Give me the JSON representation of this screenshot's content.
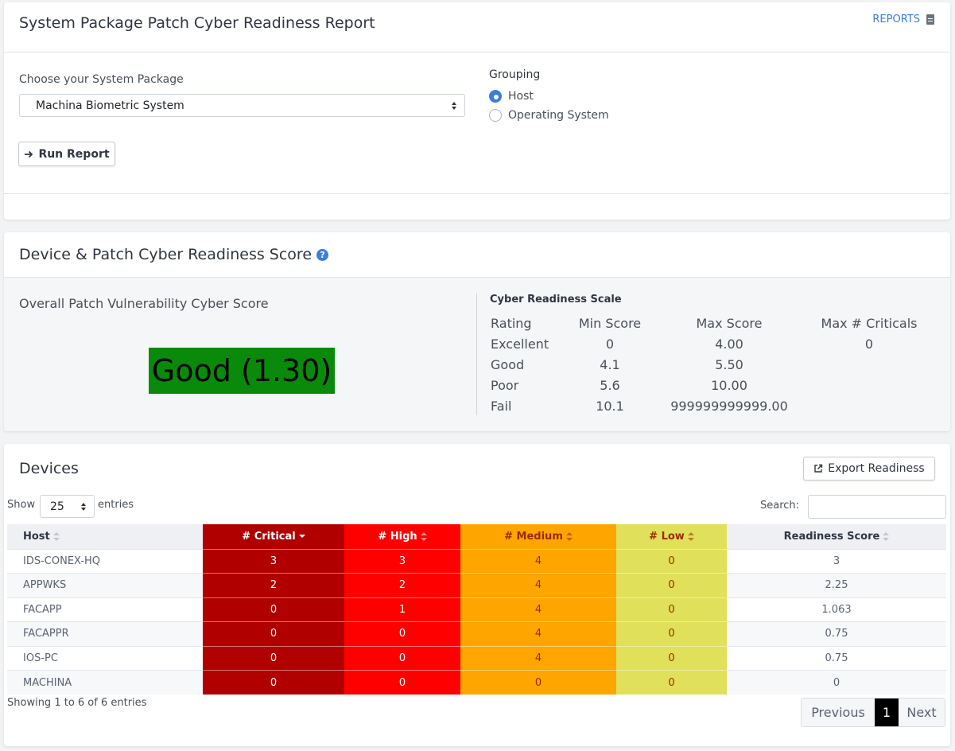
{
  "report": {
    "title": "System Package Patch Cyber Readiness Report",
    "reports_link": "REPORTS",
    "package_label": "Choose your System Package",
    "package_value": "Machina Biometric System",
    "grouping_label": "Grouping",
    "grouping_options": [
      {
        "label": "Host",
        "selected": true
      },
      {
        "label": "Operating System",
        "selected": false
      }
    ],
    "run_button": "Run Report"
  },
  "score": {
    "title": "Device & Patch Cyber Readiness Score",
    "overall_label": "Overall Patch Vulnerability Cyber Score",
    "overall_value": "Good (1.30)",
    "overall_color": "#0a8a0a",
    "scale_title": "Cyber Readiness Scale",
    "scale_headers": [
      "Rating",
      "Min Score",
      "Max Score",
      "Max # Criticals"
    ],
    "scale_rows": [
      [
        "Excellent",
        "0",
        "4.00",
        "0"
      ],
      [
        "Good",
        "4.1",
        "5.50",
        ""
      ],
      [
        "Poor",
        "5.6",
        "10.00",
        ""
      ],
      [
        "Fail",
        "10.1",
        "999999999999.00",
        ""
      ]
    ]
  },
  "devices": {
    "title": "Devices",
    "export_button": "Export Readiness",
    "show_label": "Show",
    "page_size": "25",
    "entries_label": "entries",
    "search_label": "Search:",
    "columns": [
      "Host",
      "# Critical",
      "# High",
      "# Medium",
      "# Low",
      "Readiness Score"
    ],
    "column_colors": {
      "critical": "#b00000",
      "high": "#fe0000",
      "medium": "#fea500",
      "low": "#e0e05a"
    },
    "rows": [
      [
        "IDS-CONEX-HQ",
        "3",
        "3",
        "4",
        "0",
        "3"
      ],
      [
        "APPWKS",
        "2",
        "2",
        "4",
        "0",
        "2.25"
      ],
      [
        "FACAPP",
        "0",
        "1",
        "4",
        "0",
        "1.063"
      ],
      [
        "FACAPPR",
        "0",
        "0",
        "4",
        "0",
        "0.75"
      ],
      [
        "IOS-PC",
        "0",
        "0",
        "4",
        "0",
        "0.75"
      ],
      [
        "MACHINA",
        "0",
        "0",
        "0",
        "0",
        "0"
      ]
    ],
    "info": "Showing 1 to 6 of 6 entries",
    "pagination": {
      "previous": "Previous",
      "current": "1",
      "next": "Next"
    }
  }
}
